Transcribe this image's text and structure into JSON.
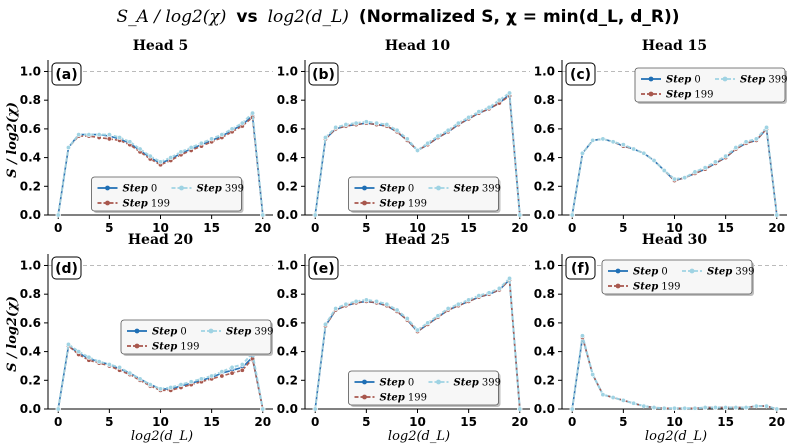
{
  "title": {
    "part1": "S_A / log2(χ)",
    "vs": "vs",
    "part2": "log2(d_L)",
    "suffix": "(Normalized S, χ = min(d_L, d_R))"
  },
  "chart_data": {
    "type": "line",
    "xlabel": "log2(d_L)",
    "ylabel": "S / log2(χ)",
    "xlim": [
      -1,
      21
    ],
    "ylim": [
      0,
      1.08
    ],
    "xticks": [
      0,
      5,
      10,
      15,
      20
    ],
    "yticks": [
      "0.0",
      "0.2",
      "0.4",
      "0.6",
      "0.8",
      "1.0"
    ],
    "reference_line": 1.0,
    "series_names": [
      "Step 0",
      "Step 199",
      "Step 399"
    ],
    "series_colors": [
      "#1f6fb5",
      "#a8574d",
      "#9fd3e3"
    ],
    "legend_word": "Step",
    "legend_nums": [
      "0",
      "199",
      "399"
    ],
    "x": [
      0,
      1,
      2,
      3,
      4,
      5,
      6,
      7,
      8,
      9,
      10,
      11,
      12,
      13,
      14,
      15,
      16,
      17,
      18,
      19,
      20
    ],
    "panels": [
      {
        "label": "(a)",
        "title": "Head 5",
        "legend": "lower-center",
        "series": [
          {
            "name": "Step 0",
            "values": [
              0,
              0.47,
              0.56,
              0.56,
              0.56,
              0.55,
              0.53,
              0.5,
              0.45,
              0.4,
              0.36,
              0.39,
              0.43,
              0.46,
              0.49,
              0.52,
              0.55,
              0.59,
              0.63,
              0.69,
              0
            ]
          },
          {
            "name": "Step 199",
            "values": [
              0,
              0.47,
              0.55,
              0.55,
              0.54,
              0.53,
              0.52,
              0.49,
              0.44,
              0.39,
              0.35,
              0.38,
              0.42,
              0.45,
              0.48,
              0.51,
              0.54,
              0.58,
              0.62,
              0.68,
              0
            ]
          },
          {
            "name": "Step 399",
            "values": [
              0,
              0.47,
              0.56,
              0.56,
              0.56,
              0.56,
              0.54,
              0.51,
              0.46,
              0.41,
              0.37,
              0.4,
              0.44,
              0.47,
              0.5,
              0.53,
              0.56,
              0.6,
              0.64,
              0.71,
              0
            ]
          }
        ]
      },
      {
        "label": "(b)",
        "title": "Head 10",
        "legend": "lower-center",
        "series": [
          {
            "name": "Step 0",
            "values": [
              0,
              0.53,
              0.6,
              0.62,
              0.63,
              0.64,
              0.63,
              0.62,
              0.58,
              0.52,
              0.45,
              0.49,
              0.54,
              0.58,
              0.63,
              0.67,
              0.71,
              0.74,
              0.78,
              0.84,
              0
            ]
          },
          {
            "name": "Step 199",
            "values": [
              0,
              0.53,
              0.6,
              0.62,
              0.63,
              0.64,
              0.63,
              0.62,
              0.58,
              0.52,
              0.45,
              0.49,
              0.54,
              0.58,
              0.63,
              0.67,
              0.71,
              0.74,
              0.78,
              0.83,
              0
            ]
          },
          {
            "name": "Step 399",
            "values": [
              0,
              0.54,
              0.61,
              0.63,
              0.64,
              0.65,
              0.64,
              0.63,
              0.59,
              0.53,
              0.45,
              0.5,
              0.55,
              0.59,
              0.64,
              0.68,
              0.72,
              0.75,
              0.8,
              0.85,
              0
            ]
          }
        ]
      },
      {
        "label": "(c)",
        "title": "Head 15",
        "legend": "upper-right",
        "series": [
          {
            "name": "Step 0",
            "values": [
              0,
              0.43,
              0.52,
              0.53,
              0.51,
              0.48,
              0.46,
              0.43,
              0.38,
              0.31,
              0.24,
              0.26,
              0.29,
              0.32,
              0.36,
              0.4,
              0.46,
              0.5,
              0.52,
              0.6,
              0
            ]
          },
          {
            "name": "Step 199",
            "values": [
              0,
              0.43,
              0.52,
              0.53,
              0.51,
              0.48,
              0.46,
              0.43,
              0.38,
              0.31,
              0.24,
              0.26,
              0.29,
              0.32,
              0.36,
              0.4,
              0.46,
              0.5,
              0.52,
              0.6,
              0
            ]
          },
          {
            "name": "Step 399",
            "values": [
              0,
              0.43,
              0.52,
              0.53,
              0.51,
              0.49,
              0.46,
              0.43,
              0.38,
              0.31,
              0.25,
              0.26,
              0.3,
              0.33,
              0.37,
              0.41,
              0.47,
              0.51,
              0.53,
              0.61,
              0
            ]
          }
        ]
      },
      {
        "label": "(d)",
        "title": "Head 20",
        "legend": "middle-right",
        "series": [
          {
            "name": "Step 0",
            "values": [
              0,
              0.44,
              0.39,
              0.35,
              0.33,
              0.31,
              0.28,
              0.25,
              0.21,
              0.17,
              0.14,
              0.14,
              0.16,
              0.18,
              0.2,
              0.22,
              0.25,
              0.27,
              0.29,
              0.36,
              0
            ]
          },
          {
            "name": "Step 199",
            "values": [
              0,
              0.44,
              0.38,
              0.34,
              0.32,
              0.3,
              0.27,
              0.24,
              0.2,
              0.16,
              0.13,
              0.13,
              0.15,
              0.17,
              0.19,
              0.21,
              0.23,
              0.25,
              0.27,
              0.35,
              0
            ]
          },
          {
            "name": "Step 399",
            "values": [
              0,
              0.45,
              0.4,
              0.36,
              0.33,
              0.31,
              0.29,
              0.25,
              0.21,
              0.17,
              0.14,
              0.15,
              0.17,
              0.19,
              0.21,
              0.23,
              0.26,
              0.29,
              0.31,
              0.39,
              0
            ]
          }
        ]
      },
      {
        "label": "(e)",
        "title": "Head 25",
        "legend": "lower-center",
        "series": [
          {
            "name": "Step 0",
            "values": [
              0,
              0.58,
              0.69,
              0.72,
              0.74,
              0.75,
              0.74,
              0.72,
              0.68,
              0.62,
              0.54,
              0.59,
              0.64,
              0.69,
              0.72,
              0.75,
              0.78,
              0.8,
              0.83,
              0.9,
              0
            ]
          },
          {
            "name": "Step 199",
            "values": [
              0,
              0.58,
              0.69,
              0.72,
              0.74,
              0.75,
              0.74,
              0.72,
              0.68,
              0.62,
              0.54,
              0.59,
              0.64,
              0.69,
              0.72,
              0.75,
              0.78,
              0.8,
              0.83,
              0.9,
              0
            ]
          },
          {
            "name": "Step 399",
            "values": [
              0,
              0.59,
              0.7,
              0.73,
              0.75,
              0.76,
              0.75,
              0.73,
              0.69,
              0.63,
              0.55,
              0.6,
              0.65,
              0.7,
              0.73,
              0.76,
              0.79,
              0.81,
              0.84,
              0.91,
              0
            ]
          }
        ]
      },
      {
        "label": "(f)",
        "title": "Head 30",
        "legend": "upper-left",
        "series": [
          {
            "name": "Step 0",
            "values": [
              0,
              0.5,
              0.24,
              0.1,
              0.08,
              0.06,
              0.04,
              0.02,
              0.01,
              0.005,
              0.005,
              0.005,
              0.005,
              0.01,
              0.01,
              0.01,
              0.01,
              0.01,
              0.02,
              0.02,
              0
            ]
          },
          {
            "name": "Step 199",
            "values": [
              0,
              0.5,
              0.24,
              0.1,
              0.08,
              0.06,
              0.04,
              0.02,
              0.01,
              0.005,
              0.005,
              0.005,
              0.005,
              0.01,
              0.01,
              0.01,
              0.01,
              0.01,
              0.02,
              0.02,
              0
            ]
          },
          {
            "name": "Step 399",
            "values": [
              0,
              0.51,
              0.24,
              0.1,
              0.08,
              0.06,
              0.04,
              0.02,
              0.01,
              0.005,
              0.005,
              0.005,
              0.005,
              0.01,
              0.01,
              0.01,
              0.01,
              0.01,
              0.02,
              0.02,
              0
            ]
          }
        ]
      }
    ]
  }
}
